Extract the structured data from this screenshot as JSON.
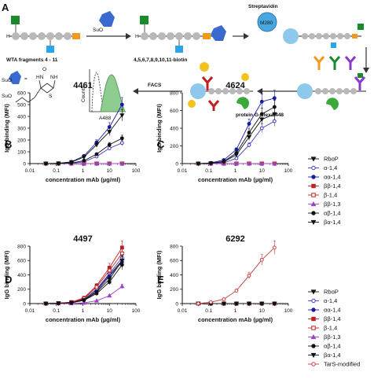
{
  "panel_a": {
    "label": "A",
    "wta_label": "WTA fragments 4 - 11",
    "biotin_label": "4,5,6,7,8,9,10,11-biotin",
    "suo_label": "SuO",
    "streptavidin_label": "Streptavidin",
    "bead_label": "M280",
    "facs_label": "FACS",
    "protein_g_label": "protein G-Alexa 448",
    "hist_ylabel": "Counts",
    "hist_xlabel": "A488",
    "struct_suo1": "SuO",
    "struct_suo2": "SuO",
    "struct_eq": "=",
    "struct_s": "S",
    "struct_hn": "HN",
    "struct_nh": "NH",
    "struct_o": "O",
    "struct_h1": "H",
    "struct_h2": "H"
  },
  "chart_data": [
    {
      "panel": "B",
      "title": "4461",
      "type": "line",
      "xscale": "log",
      "xlabel": "concentration mAb (µg/ml)",
      "ylabel": "IgG binding (MFI)",
      "xlim": [
        0.01,
        100
      ],
      "ylim": [
        0,
        600
      ],
      "xticks": [
        "0.01",
        "0.1",
        "1",
        "10",
        "100"
      ],
      "yticks": [
        "0",
        "100",
        "200",
        "300",
        "400",
        "500",
        "600"
      ],
      "x": [
        0.04,
        0.12,
        0.37,
        1.1,
        3.3,
        10,
        30
      ],
      "series": [
        {
          "name": "RboP",
          "values": [
            0,
            0,
            0,
            0,
            0,
            0,
            0
          ]
        },
        {
          "name": "α-1,4",
          "values": [
            0,
            0,
            2,
            15,
            60,
            130,
            175
          ]
        },
        {
          "name": "αα-1,4",
          "values": [
            0,
            3,
            15,
            65,
            180,
            310,
            500
          ]
        },
        {
          "name": "ββ-1,4",
          "values": [
            0,
            0,
            0,
            0,
            0,
            0,
            0
          ]
        },
        {
          "name": "β-1,4",
          "values": [
            0,
            0,
            0,
            0,
            0,
            0,
            0
          ]
        },
        {
          "name": "ββ-1,3",
          "values": [
            0,
            0,
            0,
            0,
            0,
            0,
            0
          ]
        },
        {
          "name": "αβ-1,4",
          "values": [
            0,
            0,
            5,
            25,
            80,
            160,
            215
          ]
        },
        {
          "name": "βα-1,4",
          "values": [
            0,
            2,
            12,
            55,
            160,
            270,
            410
          ]
        }
      ]
    },
    {
      "panel": "C",
      "title": "4624",
      "type": "line",
      "xscale": "log",
      "xlabel": "concentration mAb (µg/ml)",
      "ylabel": "IgG binding (MFI)",
      "xlim": [
        0.01,
        100
      ],
      "ylim": [
        0,
        800
      ],
      "xticks": [
        "0.01",
        "0.1",
        "1",
        "10",
        "100"
      ],
      "yticks": [
        "0",
        "200",
        "400",
        "600",
        "800"
      ],
      "x": [
        0.04,
        0.12,
        0.37,
        1.1,
        3.3,
        10,
        30
      ],
      "series": [
        {
          "name": "RboP",
          "values": [
            0,
            0,
            0,
            0,
            0,
            0,
            0
          ]
        },
        {
          "name": "α-1,4",
          "values": [
            0,
            2,
            10,
            60,
            210,
            400,
            480
          ]
        },
        {
          "name": "αα-1,4",
          "values": [
            0,
            8,
            40,
            160,
            450,
            700,
            740
          ]
        },
        {
          "name": "ββ-1,4",
          "values": [
            0,
            0,
            0,
            0,
            0,
            0,
            0
          ]
        },
        {
          "name": "β-1,4",
          "values": [
            0,
            0,
            0,
            0,
            0,
            0,
            0
          ]
        },
        {
          "name": "ββ-1,3",
          "values": [
            0,
            0,
            0,
            0,
            0,
            0,
            0
          ]
        },
        {
          "name": "αβ-1,4",
          "values": [
            0,
            5,
            25,
            120,
            350,
            560,
            640
          ]
        },
        {
          "name": "βα-1,4",
          "values": [
            0,
            4,
            20,
            100,
            300,
            500,
            560
          ]
        }
      ]
    },
    {
      "panel": "D",
      "title": "4497",
      "type": "line",
      "xscale": "log",
      "xlabel": "concentration mAb (µg/ml)",
      "ylabel": "IgG binding (MFI)",
      "xlim": [
        0.01,
        100
      ],
      "ylim": [
        0,
        800
      ],
      "xticks": [
        "0.01",
        "0.1",
        "1",
        "10",
        "100"
      ],
      "yticks": [
        "0",
        "200",
        "400",
        "600",
        "800"
      ],
      "x": [
        0.04,
        0.12,
        0.37,
        1.1,
        3.3,
        10,
        30
      ],
      "series": [
        {
          "name": "RboP",
          "values": [
            0,
            5,
            15,
            60,
            190,
            400,
            600
          ]
        },
        {
          "name": "α-1,4",
          "values": [
            0,
            5,
            15,
            60,
            200,
            420,
            640
          ]
        },
        {
          "name": "αα-1,4",
          "values": [
            0,
            4,
            12,
            55,
            170,
            380,
            580
          ]
        },
        {
          "name": "ββ-1,4",
          "values": [
            0,
            6,
            20,
            80,
            250,
            500,
            780
          ]
        },
        {
          "name": "β-1,4",
          "values": [
            0,
            5,
            18,
            70,
            230,
            460,
            700
          ]
        },
        {
          "name": "ββ-1,3",
          "values": [
            0,
            0,
            2,
            10,
            40,
            110,
            240
          ]
        },
        {
          "name": "αβ-1,4",
          "values": [
            0,
            3,
            10,
            45,
            140,
            300,
            540
          ]
        },
        {
          "name": "βα-1,4",
          "values": [
            0,
            4,
            12,
            50,
            160,
            340,
            600
          ]
        }
      ]
    },
    {
      "panel": "E",
      "title": "6292",
      "type": "line",
      "xscale": "log",
      "xlabel": "concentration mAb (µg/ml)",
      "ylabel": "IgG binding (MFI)",
      "xlim": [
        0.01,
        100
      ],
      "ylim": [
        0,
        800
      ],
      "xticks": [
        "0.01",
        "0.1",
        "1",
        "10",
        "100"
      ],
      "yticks": [
        "0",
        "200",
        "400",
        "600",
        "800"
      ],
      "x": [
        0.04,
        0.12,
        0.37,
        1.1,
        3.3,
        10,
        30
      ],
      "series": [
        {
          "name": "RboP",
          "values": [
            0,
            0,
            0,
            0,
            0,
            0,
            0
          ]
        },
        {
          "name": "α-1,4",
          "values": [
            0,
            0,
            0,
            0,
            0,
            0,
            0
          ]
        },
        {
          "name": "αα-1,4",
          "values": [
            0,
            0,
            0,
            0,
            0,
            0,
            0
          ]
        },
        {
          "name": "ββ-1,4",
          "values": [
            0,
            0,
            0,
            0,
            0,
            0,
            0
          ]
        },
        {
          "name": "β-1,4",
          "values": [
            0,
            0,
            0,
            0,
            0,
            0,
            0
          ]
        },
        {
          "name": "ββ-1,3",
          "values": [
            0,
            0,
            0,
            0,
            0,
            0,
            0
          ]
        },
        {
          "name": "αβ-1,4",
          "values": [
            0,
            0,
            0,
            0,
            0,
            0,
            0
          ]
        },
        {
          "name": "βα-1,4",
          "values": [
            0,
            0,
            0,
            0,
            0,
            0,
            0
          ]
        },
        {
          "name": "TarS-modified",
          "values": [
            0,
            20,
            60,
            180,
            390,
            610,
            780
          ]
        }
      ]
    }
  ],
  "legend_series": [
    {
      "name": "RboP",
      "color": "#111111",
      "marker": "tri-down",
      "fill": true
    },
    {
      "name": "α-1,4",
      "color": "#4040c0",
      "marker": "circle",
      "fill": false
    },
    {
      "name": "αα-1,4",
      "color": "#1a1aa8",
      "marker": "circle",
      "fill": true
    },
    {
      "name": "ββ-1,4",
      "color": "#c02020",
      "marker": "square",
      "fill": true
    },
    {
      "name": "β-1,4",
      "color": "#c02020",
      "marker": "square",
      "fill": false
    },
    {
      "name": "ββ-1,3",
      "color": "#9b40c8",
      "marker": "tri-up",
      "fill": true
    },
    {
      "name": "αβ-1,4",
      "color": "#111111",
      "marker": "circle",
      "fill": true
    },
    {
      "name": "βα-1,4",
      "color": "#111111",
      "marker": "tri-down",
      "fill": true
    },
    {
      "name": "TarS-modified",
      "color": "#c83a3a",
      "marker": "circle",
      "fill": false
    }
  ],
  "panel_labels": [
    "B",
    "C",
    "D",
    "E"
  ]
}
